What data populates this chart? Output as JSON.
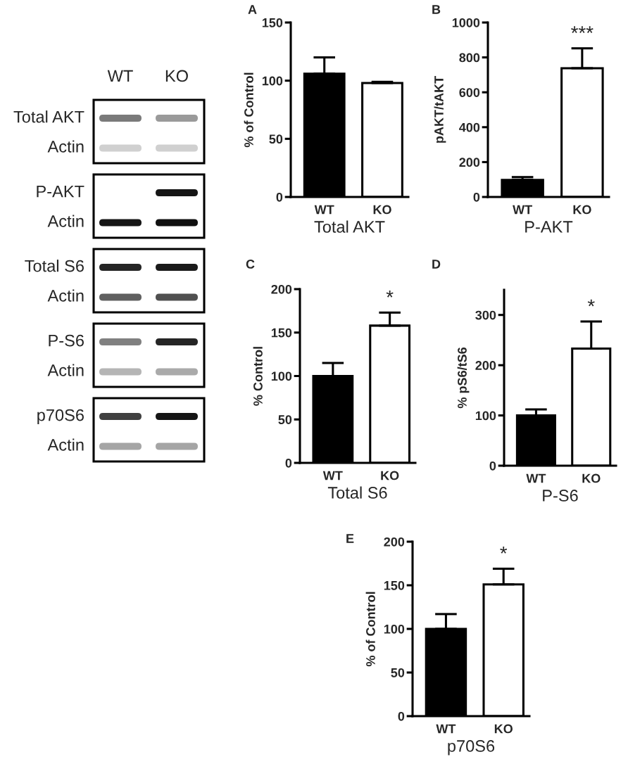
{
  "chart_data": [
    {
      "type": "other",
      "categories": [
        "WT",
        "KO"
      ],
      "annotations": [
        "Total AKT",
        "Actin",
        "P-AKT",
        "Actin",
        "Total S6",
        "Actin",
        "P-S6",
        "Actin",
        "p70S6",
        "Actin"
      ]
    },
    {
      "type": "bar",
      "title": "A",
      "categories": [
        "WT",
        "KO"
      ],
      "values": [
        106,
        98
      ],
      "colors": [
        "#000000",
        "#ffffff"
      ],
      "errors": [
        [
          106,
          120
        ],
        [
          98,
          99
        ]
      ],
      "ylabel": "% of Control",
      "xlabel": "Total AKT",
      "ylim": [
        0,
        150
      ],
      "yticks": [
        0,
        50,
        100,
        150
      ]
    },
    {
      "type": "bar",
      "title": "B",
      "categories": [
        "WT",
        "KO"
      ],
      "values": [
        98,
        738
      ],
      "colors": [
        "#000000",
        "#ffffff"
      ],
      "errors": [
        [
          98,
          114
        ],
        [
          738,
          852
        ]
      ],
      "ylabel": "pAKT/tAKT",
      "xlabel": "P-AKT",
      "ylim": [
        0,
        1000
      ],
      "yticks": [
        0,
        200,
        400,
        600,
        800,
        1000
      ],
      "annotations": [
        {
          "text": "***",
          "x": "KO",
          "y": 852
        }
      ]
    },
    {
      "type": "bar",
      "title": "C",
      "categories": [
        "WT",
        "KO"
      ],
      "values": [
        100,
        158
      ],
      "colors": [
        "#000000",
        "#ffffff"
      ],
      "errors": [
        [
          100,
          115
        ],
        [
          158,
          173
        ]
      ],
      "ylabel": "% Control",
      "xlabel": "Total S6",
      "ylim": [
        0,
        200
      ],
      "yticks": [
        0,
        50,
        100,
        150,
        200
      ],
      "annotations": [
        {
          "text": "*",
          "x": "KO",
          "y": 173
        }
      ]
    },
    {
      "type": "bar",
      "title": "D",
      "categories": [
        "WT",
        "KO"
      ],
      "values": [
        100,
        233
      ],
      "colors": [
        "#000000",
        "#ffffff"
      ],
      "errors": [
        [
          100,
          112
        ],
        [
          233,
          287
        ]
      ],
      "ylabel": "% pS6/tS6",
      "xlabel": "P-S6",
      "ylim": [
        0,
        350
      ],
      "yticks": [
        0,
        100,
        200,
        300
      ],
      "annotations": [
        {
          "text": "*",
          "x": "KO",
          "y": 287
        }
      ]
    },
    {
      "type": "bar",
      "title": "E",
      "categories": [
        "WT",
        "KO"
      ],
      "values": [
        100,
        151
      ],
      "colors": [
        "#000000",
        "#ffffff"
      ],
      "errors": [
        [
          100,
          117
        ],
        [
          151,
          169
        ]
      ],
      "ylabel": "% of Control",
      "xlabel": "p70S6",
      "ylim": [
        0,
        200
      ],
      "yticks": [
        0,
        50,
        100,
        150,
        200
      ],
      "annotations": [
        {
          "text": "*",
          "x": "KO",
          "y": 169
        }
      ]
    }
  ]
}
